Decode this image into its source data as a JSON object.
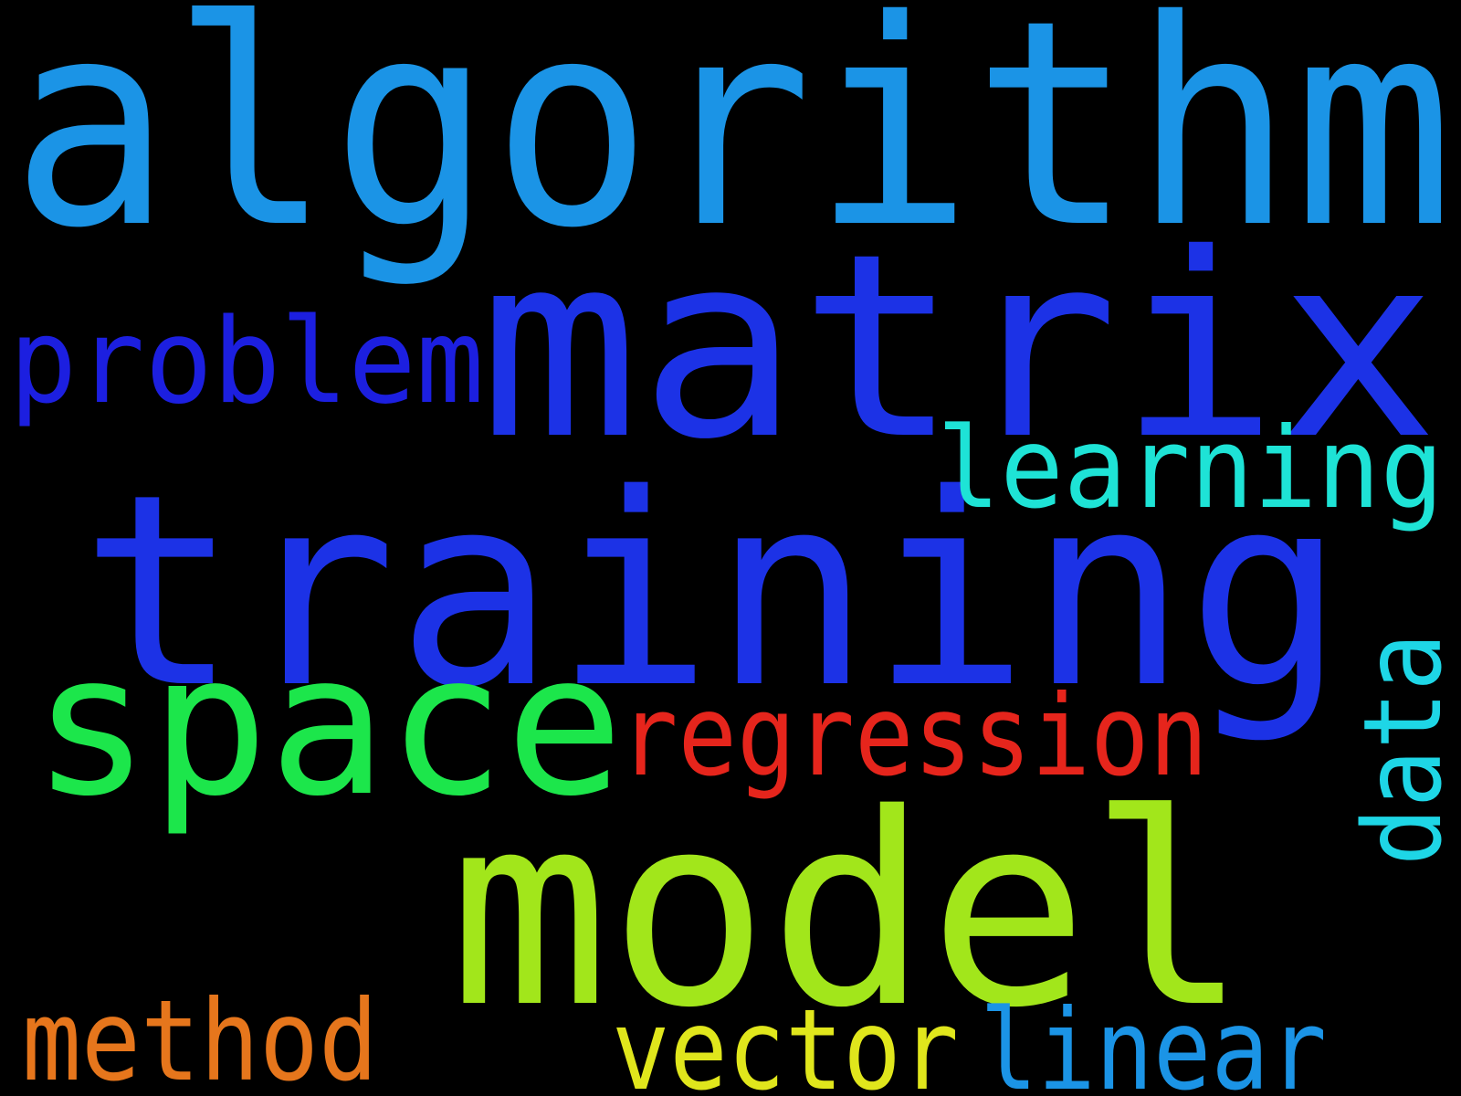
{
  "words": [
    {
      "text": "algorithm",
      "color": "#1b94e6",
      "vertical": false
    },
    {
      "text": "matrix",
      "color": "#1c32e6",
      "vertical": false
    },
    {
      "text": "training",
      "color": "#1c32e6",
      "vertical": false
    },
    {
      "text": "problem",
      "color": "#1c1fe0",
      "vertical": false
    },
    {
      "text": "learning",
      "color": "#1ee3d6",
      "vertical": false
    },
    {
      "text": "space",
      "color": "#1ce64b",
      "vertical": false
    },
    {
      "text": "regression",
      "color": "#e6251c",
      "vertical": false
    },
    {
      "text": "data",
      "color": "#1ed6e6",
      "vertical": true
    },
    {
      "text": "model",
      "color": "#a2e61b",
      "vertical": false
    },
    {
      "text": "method",
      "color": "#e6761c",
      "vertical": false
    },
    {
      "text": "vector",
      "color": "#e0e61c",
      "vertical": false
    },
    {
      "text": "linear",
      "color": "#1b94e6",
      "vertical": false
    }
  ]
}
